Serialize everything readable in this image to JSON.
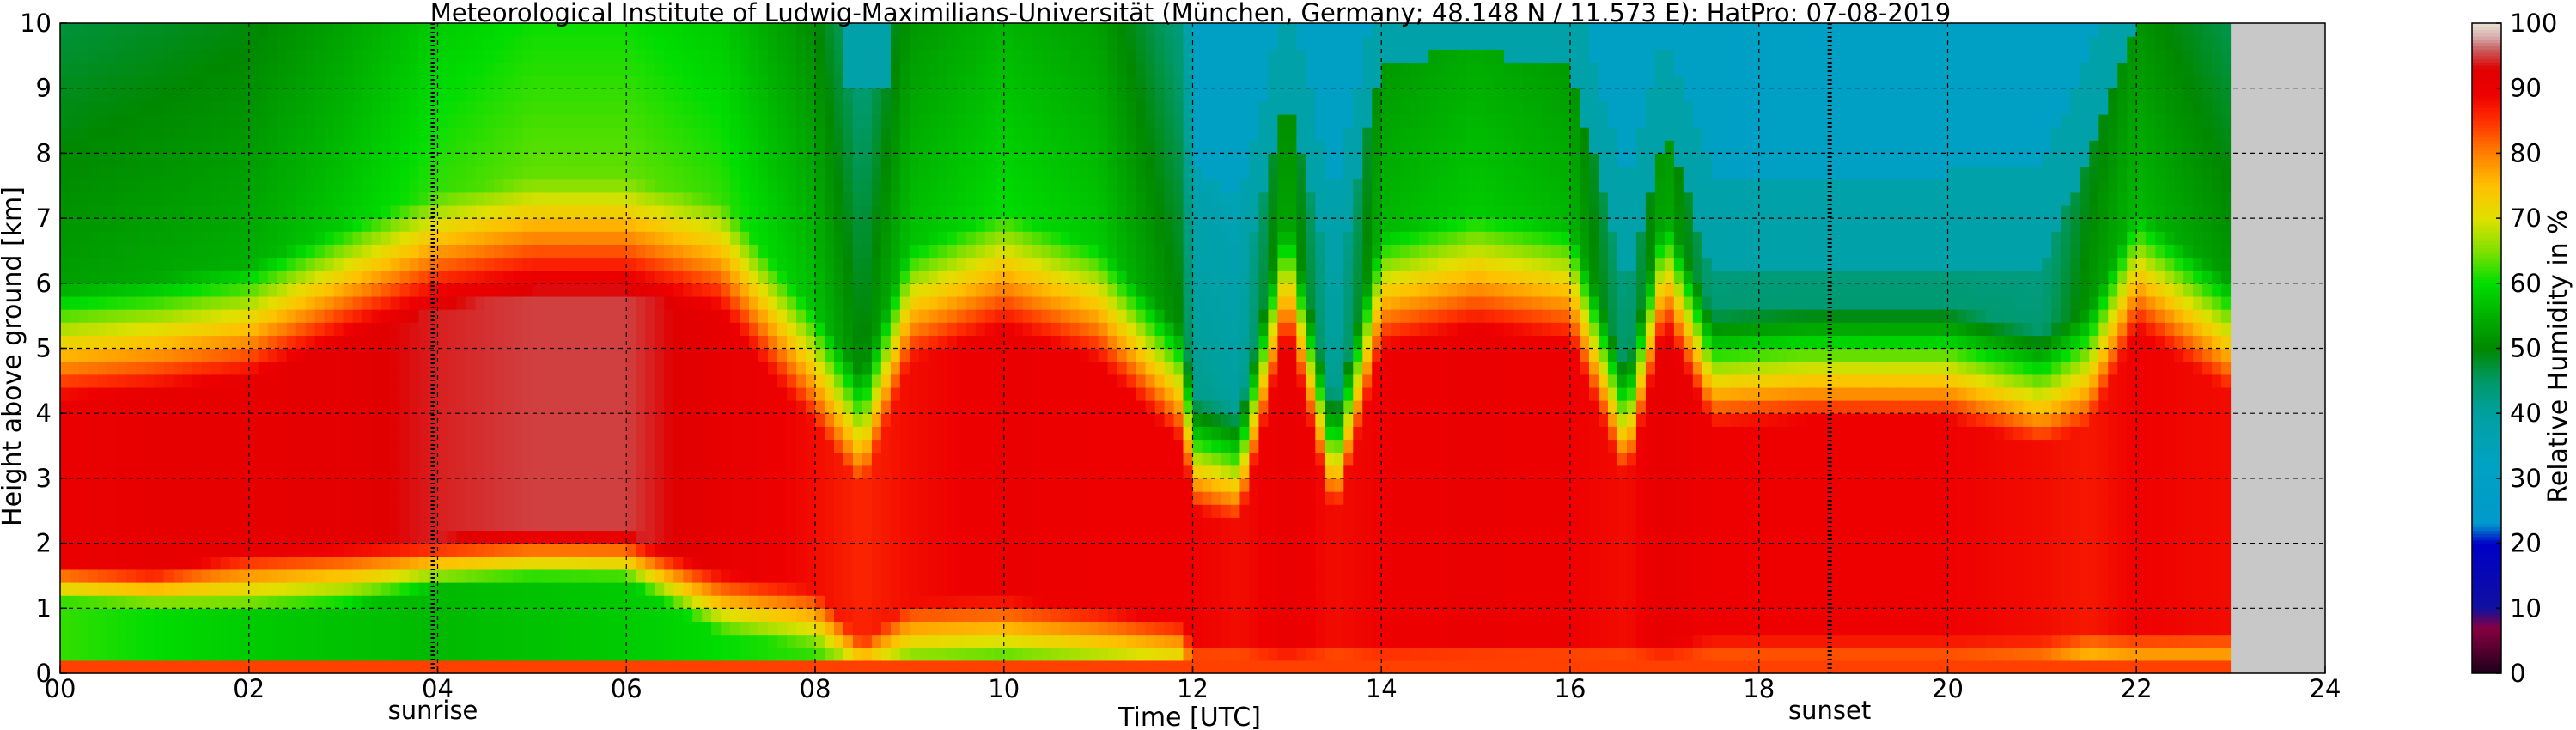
{
  "chart_data": {
    "type": "heatmap",
    "title": "Meteorological Institute of Ludwig-Maximilians-Universität (München, Germany; 48.148 N / 11.573 E):    HatPro: 07-08-2019",
    "xlabel": "Time [UTC]",
    "ylabel": "Height above ground [km]",
    "colorbar_label": "Relative Humidity in %",
    "xlim": [
      0,
      24
    ],
    "ylim": [
      0,
      10
    ],
    "x_ticks": [
      "00",
      "02",
      "04",
      "06",
      "08",
      "10",
      "12",
      "14",
      "16",
      "18",
      "20",
      "22",
      "24"
    ],
    "y_ticks": [
      "0",
      "1",
      "2",
      "3",
      "4",
      "5",
      "6",
      "7",
      "8",
      "9",
      "10"
    ],
    "colorbar_ticks": [
      "0",
      "10",
      "20",
      "30",
      "40",
      "50",
      "60",
      "70",
      "80",
      "90",
      "100"
    ],
    "grid": true,
    "data_end_hour": 23.0,
    "no_data_color": "#c8c8c8",
    "markers": [
      {
        "label": "sunrise",
        "hour": 3.95
      },
      {
        "label": "sunset",
        "hour": 18.75
      }
    ],
    "colorscale": [
      {
        "value": 0,
        "color": "#1a0018"
      },
      {
        "value": 4,
        "color": "#5a0030"
      },
      {
        "value": 7,
        "color": "#870040"
      },
      {
        "value": 10,
        "color": "#1010a0"
      },
      {
        "value": 20,
        "color": "#0000c8"
      },
      {
        "value": 23,
        "color": "#0099cc"
      },
      {
        "value": 33,
        "color": "#00a3c0"
      },
      {
        "value": 40,
        "color": "#00a0a0"
      },
      {
        "value": 45,
        "color": "#009966"
      },
      {
        "value": 50,
        "color": "#008800"
      },
      {
        "value": 55,
        "color": "#00b000"
      },
      {
        "value": 60,
        "color": "#00dd00"
      },
      {
        "value": 65,
        "color": "#80e000"
      },
      {
        "value": 70,
        "color": "#e0e000"
      },
      {
        "value": 75,
        "color": "#ffc000"
      },
      {
        "value": 80,
        "color": "#ff8000"
      },
      {
        "value": 85,
        "color": "#ff3000"
      },
      {
        "value": 89,
        "color": "#ee0000"
      },
      {
        "value": 93,
        "color": "#e00000"
      },
      {
        "value": 96,
        "color": "#c86060"
      },
      {
        "value": 98,
        "color": "#d8b0b0"
      },
      {
        "value": 100,
        "color": "#e8e0d0"
      }
    ],
    "time_profile": [
      {
        "hour": 0.0,
        "surface": 62,
        "low_moist_top": 1.1,
        "moist_base": 1.7,
        "core": 90,
        "top_km": 4.7,
        "upper": 53,
        "dry_aloft": 0
      },
      {
        "hour": 1.0,
        "surface": 60,
        "low_moist_top": 1.0,
        "moist_base": 1.6,
        "core": 91,
        "top_km": 4.8,
        "upper": 54,
        "dry_aloft": 0
      },
      {
        "hour": 2.0,
        "surface": 58,
        "low_moist_top": 0.9,
        "moist_base": 1.9,
        "core": 91,
        "top_km": 5.0,
        "upper": 55,
        "dry_aloft": 0
      },
      {
        "hour": 3.0,
        "surface": 57,
        "low_moist_top": 1.0,
        "moist_base": 2.0,
        "core": 92,
        "top_km": 5.6,
        "upper": 58,
        "dry_aloft": 0
      },
      {
        "hour": 4.0,
        "surface": 56,
        "low_moist_top": 1.3,
        "moist_base": 2.1,
        "core": 94,
        "top_km": 6.1,
        "upper": 62,
        "dry_aloft": 0
      },
      {
        "hour": 5.0,
        "surface": 57,
        "low_moist_top": 1.4,
        "moist_base": 2.2,
        "core": 95,
        "top_km": 6.3,
        "upper": 64,
        "dry_aloft": 0
      },
      {
        "hour": 6.0,
        "surface": 58,
        "low_moist_top": 1.4,
        "moist_base": 2.2,
        "core": 95,
        "top_km": 6.3,
        "upper": 64,
        "dry_aloft": 0
      },
      {
        "hour": 7.0,
        "surface": 60,
        "low_moist_top": 0.6,
        "moist_base": 1.6,
        "core": 91,
        "top_km": 6.0,
        "upper": 62,
        "dry_aloft": 0
      },
      {
        "hour": 8.0,
        "surface": 62,
        "low_moist_top": 0.4,
        "moist_base": 1.3,
        "core": 88,
        "top_km": 4.3,
        "upper": 57,
        "dry_aloft": 0
      },
      {
        "hour": 8.5,
        "surface": 72,
        "low_moist_top": 0.2,
        "moist_base": 0.5,
        "core": 86,
        "top_km": 3.3,
        "upper": 50,
        "dry_aloft": 9.0
      },
      {
        "hour": 9.0,
        "surface": 66,
        "low_moist_top": 0.3,
        "moist_base": 1.1,
        "core": 88,
        "top_km": 5.3,
        "upper": 57,
        "dry_aloft": 0
      },
      {
        "hour": 10.0,
        "surface": 64,
        "low_moist_top": 0.3,
        "moist_base": 1.2,
        "core": 90,
        "top_km": 5.8,
        "upper": 60,
        "dry_aloft": 0
      },
      {
        "hour": 11.0,
        "surface": 68,
        "low_moist_top": 0.3,
        "moist_base": 1.0,
        "core": 89,
        "top_km": 5.3,
        "upper": 58,
        "dry_aloft": 0
      },
      {
        "hour": 11.9,
        "surface": 72,
        "low_moist_top": 0.3,
        "moist_base": 0.8,
        "core": 89,
        "top_km": 4.0,
        "upper": 50,
        "dry_aloft": 0
      },
      {
        "hour": 12.0,
        "surface": 80,
        "low_moist_top": 0.0,
        "moist_base": 0.5,
        "core": 89,
        "top_km": 3.0,
        "upper": 42,
        "dry_aloft": 6.3
      },
      {
        "hour": 12.5,
        "surface": 80,
        "low_moist_top": 0.0,
        "moist_base": 0.5,
        "core": 88,
        "top_km": 2.8,
        "upper": 40,
        "dry_aloft": 5.8
      },
      {
        "hour": 13.0,
        "surface": 82,
        "low_moist_top": 0.0,
        "moist_base": 0.4,
        "core": 90,
        "top_km": 5.8,
        "upper": 55,
        "dry_aloft": 9.0
      },
      {
        "hour": 13.5,
        "surface": 80,
        "low_moist_top": 0.0,
        "moist_base": 0.5,
        "core": 88,
        "top_km": 2.8,
        "upper": 40,
        "dry_aloft": 5.8
      },
      {
        "hour": 14.0,
        "surface": 82,
        "low_moist_top": 0.0,
        "moist_base": 0.5,
        "core": 89,
        "top_km": 5.5,
        "upper": 56,
        "dry_aloft": 9.4
      },
      {
        "hour": 15.0,
        "surface": 80,
        "low_moist_top": 0.0,
        "moist_base": 0.5,
        "core": 90,
        "top_km": 5.8,
        "upper": 58,
        "dry_aloft": 9.6
      },
      {
        "hour": 16.0,
        "surface": 80,
        "low_moist_top": 0.0,
        "moist_base": 0.5,
        "core": 89,
        "top_km": 5.6,
        "upper": 56,
        "dry_aloft": 9.3
      },
      {
        "hour": 16.6,
        "surface": 80,
        "low_moist_top": 0.0,
        "moist_base": 0.5,
        "core": 88,
        "top_km": 3.4,
        "upper": 44,
        "dry_aloft": 6.0
      },
      {
        "hour": 17.0,
        "surface": 82,
        "low_moist_top": 0.0,
        "moist_base": 0.5,
        "core": 91,
        "top_km": 5.8,
        "upper": 55,
        "dry_aloft": 8.4
      },
      {
        "hour": 17.5,
        "surface": 80,
        "low_moist_top": 0.0,
        "moist_base": 0.6,
        "core": 89,
        "top_km": 4.3,
        "upper": 44,
        "dry_aloft": 6.2
      },
      {
        "hour": 18.5,
        "surface": 80,
        "low_moist_top": 0.0,
        "moist_base": 0.6,
        "core": 89,
        "top_km": 4.4,
        "upper": 44,
        "dry_aloft": 6.2
      },
      {
        "hour": 20.0,
        "surface": 80,
        "low_moist_top": 0.0,
        "moist_base": 0.6,
        "core": 89,
        "top_km": 4.4,
        "upper": 44,
        "dry_aloft": 6.2
      },
      {
        "hour": 21.0,
        "surface": 78,
        "low_moist_top": 0.0,
        "moist_base": 0.6,
        "core": 88,
        "top_km": 4.0,
        "upper": 44,
        "dry_aloft": 6.3
      },
      {
        "hour": 21.5,
        "surface": 72,
        "low_moist_top": 0.0,
        "moist_base": 0.7,
        "core": 87,
        "top_km": 4.3,
        "upper": 52,
        "dry_aloft": 8.0
      },
      {
        "hour": 22.0,
        "surface": 74,
        "low_moist_top": 0.0,
        "moist_base": 0.7,
        "core": 89,
        "top_km": 5.8,
        "upper": 56,
        "dry_aloft": 10.0
      },
      {
        "hour": 23.0,
        "surface": 74,
        "low_moist_top": 0.0,
        "moist_base": 0.7,
        "core": 88,
        "top_km": 4.8,
        "upper": 52,
        "dry_aloft": 10.0
      }
    ]
  }
}
